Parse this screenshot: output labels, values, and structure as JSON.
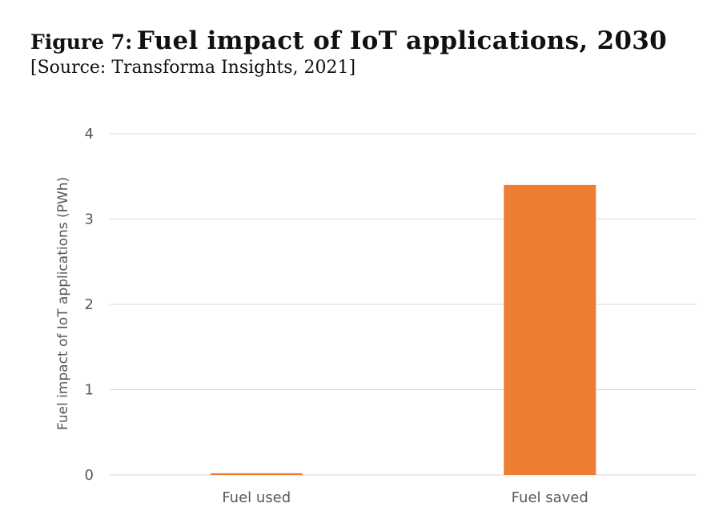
{
  "figure_label": "Figure 7:",
  "figure_title": "Fuel impact of IoT applications, 2030",
  "source": "[Source: Transforma Insights, 2021]",
  "colors": {
    "bar": "#ED7D31",
    "grid": "#D9D9D9",
    "text": "#595959"
  },
  "chart_data": {
    "type": "bar",
    "categories": [
      "Fuel used",
      "Fuel saved"
    ],
    "values": [
      0.02,
      3.4
    ],
    "ylabel": "Fuel impact of IoT applications (PWh)",
    "xlabel": "",
    "ylim": [
      0,
      4
    ],
    "yticks": [
      0,
      1,
      2,
      3,
      4
    ],
    "grid": true,
    "legend": "none"
  }
}
